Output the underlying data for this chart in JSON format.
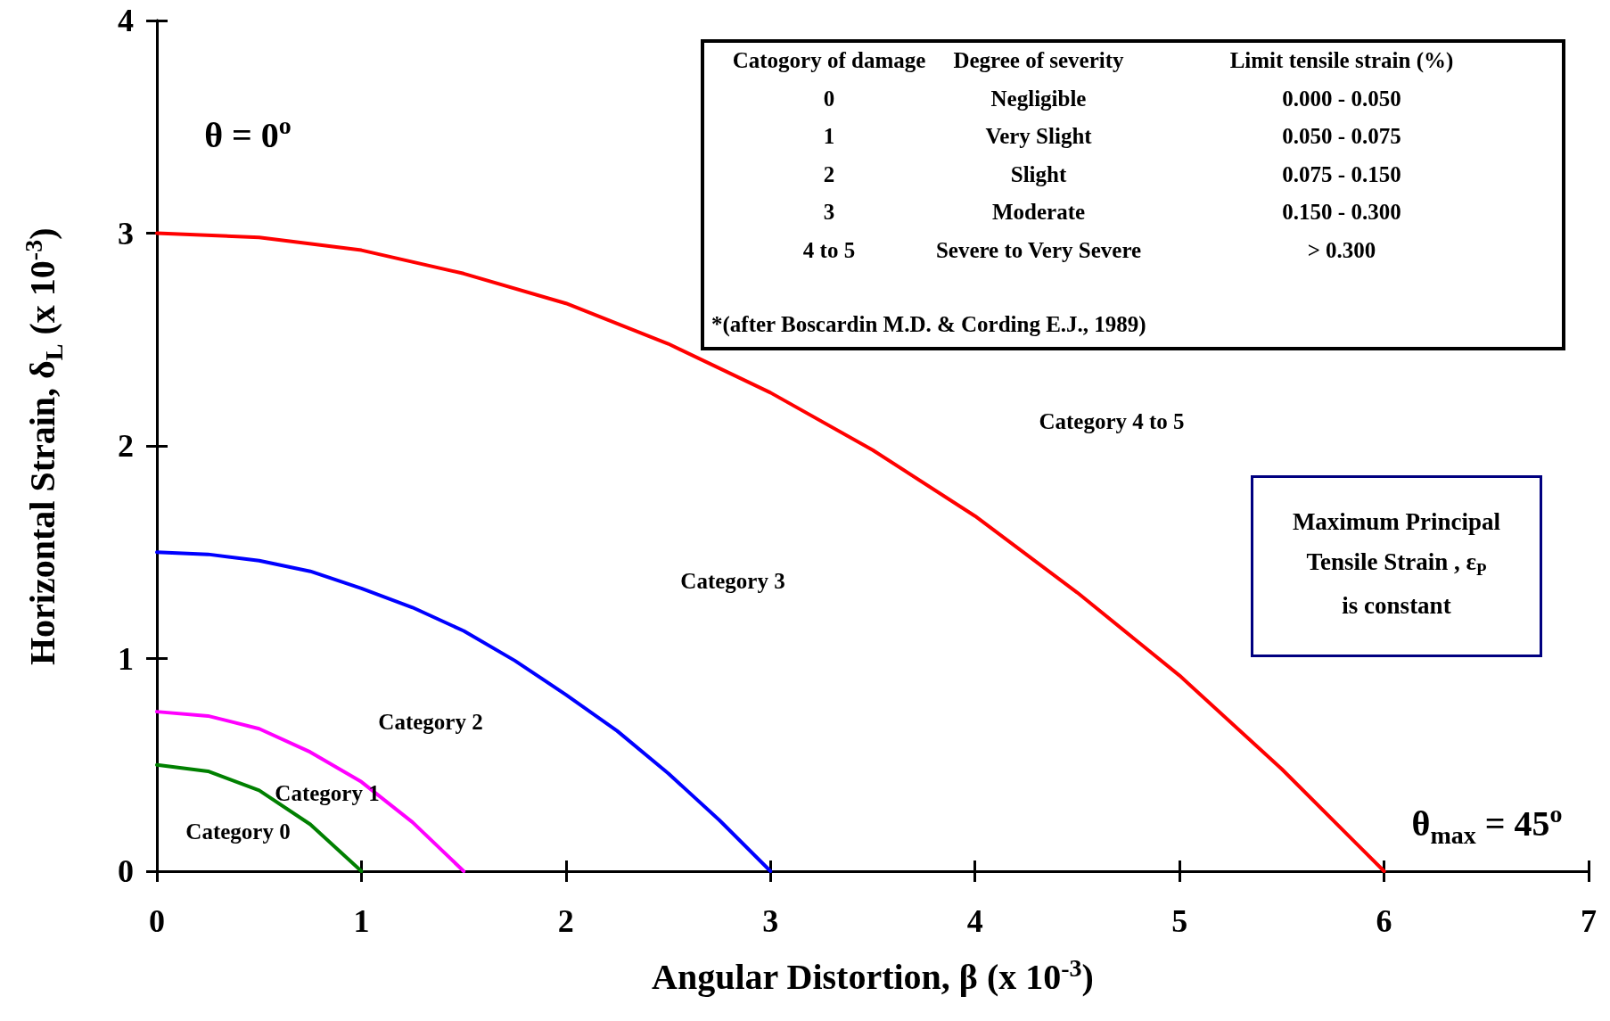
{
  "chart_data": {
    "type": "line",
    "xlabel": "Angular Distortion, β (x 10$^{-3}$)",
    "ylabel": "Horizontal Strain, δ$_{L}$ (x 10$^{-3}$)",
    "xlim": [
      0,
      7
    ],
    "xticks": [
      0,
      1,
      2,
      3,
      4,
      5,
      6,
      7
    ],
    "ylim": [
      0,
      4
    ],
    "yticks": [
      0,
      1,
      2,
      3,
      4
    ],
    "grid": false,
    "marker": "none",
    "line_style": "solid",
    "series": [
      {
        "color": "#ff0000",
        "x": [
          0,
          0.5,
          1,
          1.5,
          2,
          2.5,
          3,
          3.5,
          4,
          4.5,
          5,
          5.5,
          6
        ],
        "values": [
          3,
          2.98,
          2.92,
          2.81,
          2.67,
          2.48,
          2.25,
          1.98,
          1.67,
          1.31,
          0.92,
          0.48,
          0
        ]
      },
      {
        "color": "#0000ff",
        "x": [
          0,
          0.25,
          0.5,
          0.75,
          1,
          1.25,
          1.5,
          1.75,
          2,
          2.25,
          2.5,
          2.75,
          3
        ],
        "values": [
          1.5,
          1.49,
          1.46,
          1.41,
          1.33,
          1.24,
          1.13,
          0.99,
          0.83,
          0.66,
          0.46,
          0.24,
          0
        ]
      },
      {
        "color": "#ff00ff",
        "x": [
          0,
          0.25,
          0.5,
          0.75,
          1,
          1.25,
          1.5
        ],
        "values": [
          0.75,
          0.73,
          0.67,
          0.56,
          0.42,
          0.23,
          0
        ]
      },
      {
        "color": "#008000",
        "x": [
          0,
          0.25,
          0.5,
          0.75,
          1
        ],
        "values": [
          0.5,
          0.47,
          0.38,
          0.22,
          0
        ]
      }
    ],
    "annotations": [
      "Catogory of damage",
      "Degree of severity",
      "Limit tensile strain (%)",
      "0",
      "Negligible",
      "0.000  -   0.050",
      "1",
      "Very Slight",
      "0.050  -   0.075",
      "2",
      "Slight",
      "0.075  -   0.150",
      "3",
      "Moderate",
      "0.150  -   0.300",
      "4 to 5",
      "Severe to Very Severe",
      "> 0.300",
      "*(after Boscardin M.D. & Cording E.J., 1989)",
      "Maximum Principal",
      "Tensile Strain , ε$_{P}$",
      "is constant",
      "Category 0",
      "Category 1",
      "Category 2",
      "Category 3",
      "Category 4 to 5",
      "θ = 0$^{o}$",
      "θ$_{max}$ = 45$^{o}$"
    ]
  }
}
